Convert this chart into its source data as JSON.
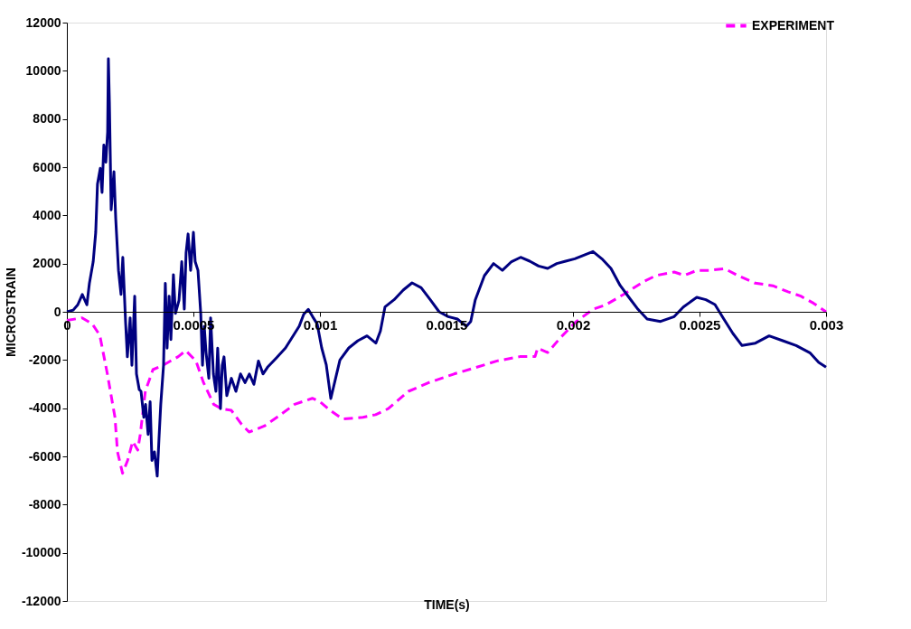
{
  "chart_data": {
    "type": "line",
    "xlabel": "TIME(s)",
    "ylabel": "MICROSTRAIN",
    "xlim": [
      0,
      0.003
    ],
    "xticks": [
      0,
      0.0005,
      0.001,
      0.0015,
      0.002,
      0.0025,
      0.003
    ],
    "ylim": [
      -12000,
      12000
    ],
    "yticks": [
      -12000,
      -10000,
      -8000,
      -6000,
      -4000,
      -2000,
      0,
      2000,
      4000,
      6000,
      8000,
      10000,
      12000
    ],
    "grid": false,
    "legend": "top right",
    "marker": "none",
    "series": [
      {
        "name": "EXPERIMENT",
        "color": "#ff00ff",
        "line_style": "dashed",
        "x": [
          0,
          6e-05,
          0.0001,
          0.00013,
          0.00016,
          0.00019,
          0.0002,
          0.00022,
          0.00024,
          0.00026,
          0.00028,
          0.00029,
          0.00031,
          0.00034,
          0.00038,
          0.00044,
          0.00047,
          0.00051,
          0.00054,
          0.00058,
          0.00061,
          0.00065,
          0.00069,
          0.00072,
          0.00078,
          0.00083,
          0.0009,
          0.00097,
          0.001,
          0.00104,
          0.00109,
          0.00117,
          0.00122,
          0.00127,
          0.00135,
          0.00143,
          0.00153,
          0.00161,
          0.0017,
          0.00179,
          0.00185,
          0.00186,
          0.0019,
          0.00195,
          0.00201,
          0.00208,
          0.00213,
          0.0022,
          0.00228,
          0.00233,
          0.0024,
          0.00244,
          0.00249,
          0.00254,
          0.0026,
          0.00265,
          0.00272,
          0.00279,
          0.00285,
          0.0029,
          0.00295,
          0.003
        ],
        "values": [
          -360,
          -250,
          -500,
          -970,
          -2580,
          -4380,
          -5810,
          -6700,
          -6170,
          -5380,
          -5740,
          -5090,
          -3300,
          -2400,
          -2220,
          -1860,
          -1610,
          -2040,
          -2940,
          -3840,
          -4020,
          -4090,
          -4660,
          -4990,
          -4740,
          -4380,
          -3840,
          -3590,
          -3730,
          -4090,
          -4450,
          -4380,
          -4270,
          -4020,
          -3300,
          -2940,
          -2580,
          -2330,
          -2040,
          -1860,
          -1860,
          -1510,
          -1690,
          -1080,
          -430,
          110,
          290,
          720,
          1260,
          1510,
          1650,
          1510,
          1720,
          1720,
          1790,
          1510,
          1190,
          1080,
          830,
          650,
          360,
          0
        ]
      },
      {
        "color": "#000080",
        "line_style": "solid",
        "x": [
          0,
          2.5e-05,
          4.3e-05,
          6.1e-05,
          7.9e-05,
          8.9e-05,
          0.000104,
          0.000114,
          0.000121,
          0.000132,
          0.000139,
          0.000146,
          0.000154,
          0.000161,
          0.000164,
          0.000168,
          0.000175,
          0.000186,
          0.000193,
          0.000204,
          0.000214,
          0.000221,
          0.000232,
          0.000239,
          0.00025,
          0.000257,
          0.000268,
          0.000275,
          0.000286,
          0.000293,
          0.000304,
          0.000311,
          0.000321,
          0.000329,
          0.000336,
          0.000346,
          0.000357,
          0.000364,
          0.000371,
          0.000382,
          0.000389,
          0.000396,
          0.000404,
          0.000411,
          0.000421,
          0.000429,
          0.000443,
          0.000454,
          0.000464,
          0.000471,
          0.000479,
          0.000489,
          0.0005,
          0.000507,
          0.000518,
          0.000529,
          0.000536,
          0.000543,
          0.00055,
          0.000561,
          0.000568,
          0.000579,
          0.000589,
          0.000596,
          0.000607,
          0.000614,
          0.000621,
          0.000632,
          0.00065,
          0.000668,
          0.000686,
          0.000704,
          0.000721,
          0.000739,
          0.000757,
          0.000775,
          0.000793,
          0.000829,
          0.000864,
          0.0009,
          0.000918,
          0.000936,
          0.000954,
          0.000971,
          0.000989,
          0.001007,
          0.001025,
          0.001043,
          0.001061,
          0.001079,
          0.001114,
          0.00115,
          0.001186,
          0.001221,
          0.001239,
          0.001257,
          0.001293,
          0.001329,
          0.001364,
          0.0014,
          0.001436,
          0.001471,
          0.001507,
          0.001543,
          0.001579,
          0.001596,
          0.001614,
          0.00165,
          0.001686,
          0.001721,
          0.001757,
          0.001793,
          0.001829,
          0.001864,
          0.0019,
          0.001936,
          0.001971,
          0.002007,
          0.002043,
          0.002079,
          0.002114,
          0.00215,
          0.002186,
          0.002221,
          0.002257,
          0.002293,
          0.002346,
          0.0024,
          0.002436,
          0.002489,
          0.002525,
          0.002561,
          0.002596,
          0.002632,
          0.002668,
          0.002721,
          0.002775,
          0.002829,
          0.002882,
          0.002936,
          0.002971,
          0.003
        ],
        "values": [
          0,
          70,
          290,
          720,
          290,
          1180,
          2080,
          3300,
          5310,
          5950,
          4950,
          6920,
          6210,
          7460,
          10500,
          8720,
          4230,
          5810,
          3870,
          1720,
          720,
          2260,
          -430,
          -1870,
          -250,
          -2220,
          650,
          -2580,
          -3230,
          -3300,
          -4380,
          -3840,
          -5090,
          -3730,
          -6170,
          -5810,
          -6820,
          -5270,
          -3840,
          -2220,
          1180,
          -1510,
          650,
          -1150,
          1540,
          -70,
          470,
          2080,
          110,
          2440,
          3230,
          1720,
          3300,
          2080,
          1720,
          -70,
          -2220,
          -610,
          -1690,
          -2760,
          -250,
          -2580,
          -3300,
          -1510,
          -4020,
          -2220,
          -1870,
          -3480,
          -2760,
          -3300,
          -2580,
          -2940,
          -2580,
          -3010,
          -2040,
          -2580,
          -2300,
          -1900,
          -1500,
          -900,
          -600,
          -100,
          100,
          -200,
          -500,
          -1500,
          -2200,
          -3600,
          -2800,
          -2000,
          -1500,
          -1200,
          -1000,
          -1300,
          -800,
          200,
          500,
          900,
          1200,
          1000,
          500,
          0,
          -200,
          -300,
          -600,
          -400,
          500,
          1500,
          2000,
          1720,
          2080,
          2260,
          2100,
          1900,
          1800,
          2000,
          2100,
          2200,
          2350,
          2500,
          2200,
          1800,
          1100,
          600,
          100,
          -300,
          -400,
          -200,
          200,
          600,
          500,
          300,
          -300,
          -900,
          -1400,
          -1300,
          -1000,
          -1200,
          -1400,
          -1700,
          -2100,
          -2300
        ]
      }
    ]
  }
}
